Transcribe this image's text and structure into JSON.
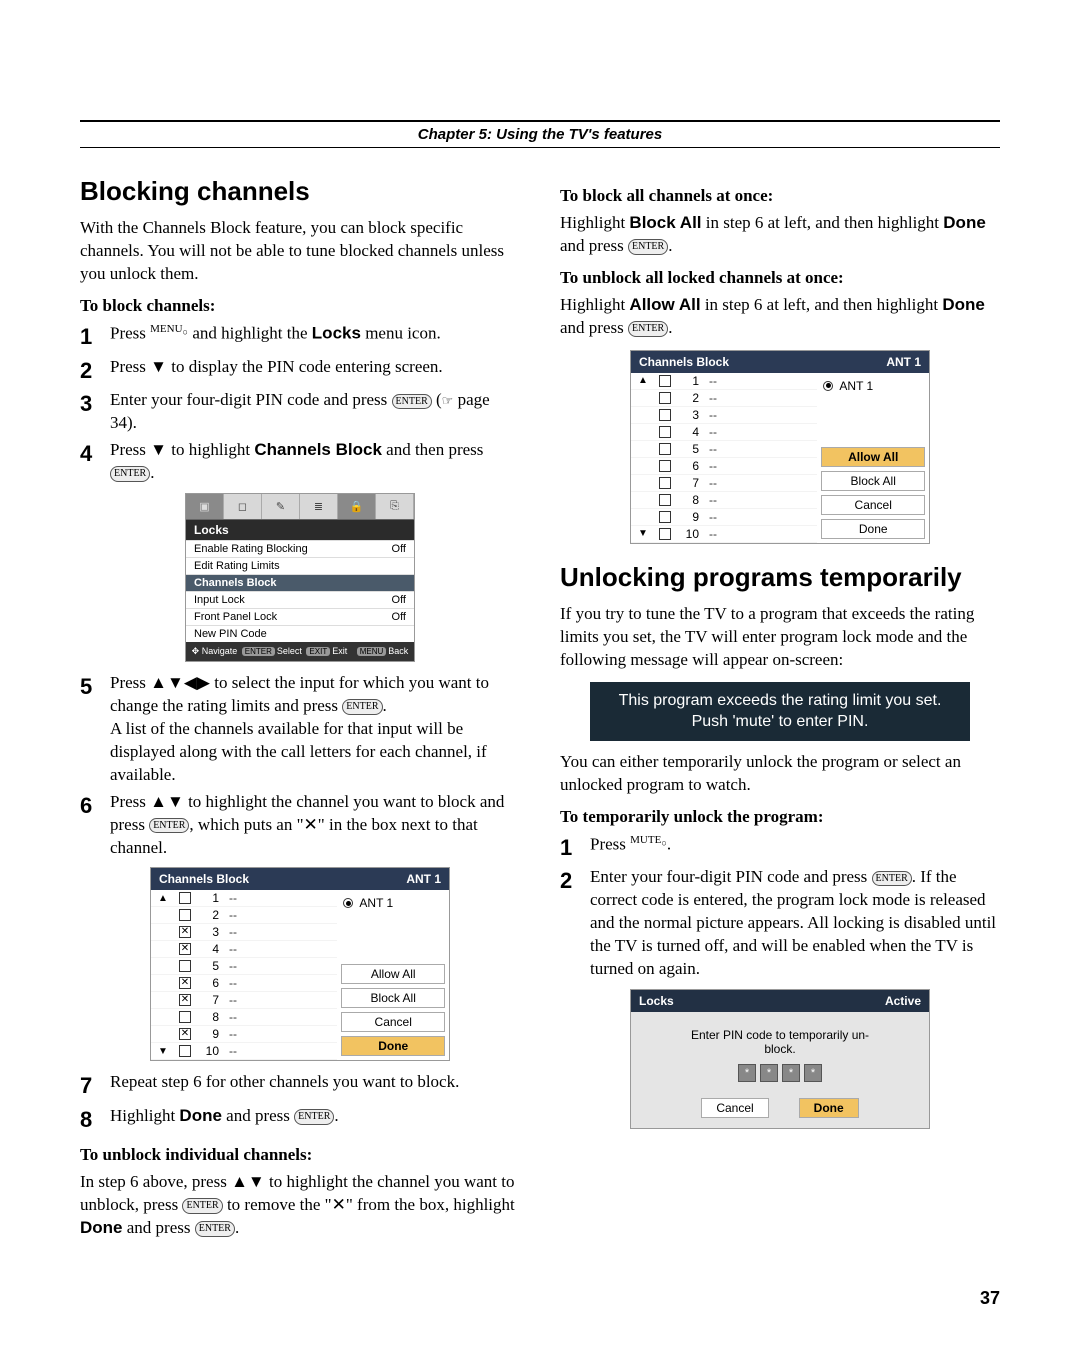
{
  "chapter": "Chapter 5: Using the TV's features",
  "page": "37",
  "left": {
    "h": "Blocking channels",
    "intro": "With the Channels Block feature, you can block specific channels. You will not be able to tune blocked channels unless you unlock them.",
    "sub1": "To block channels:",
    "steps_a": {
      "s1_a": "Press ",
      "s1_b": " and highlight the ",
      "s1_c": "Locks",
      "s1_d": " menu icon.",
      "s2_a": "Press ",
      "s2_b": " to display the PIN code entering screen.",
      "s3_a": "Enter your four-digit PIN code and press ",
      "s3_b": " (",
      "s3_c": " page 34).",
      "s4_a": "Press ",
      "s4_b": " to highlight ",
      "s4_c": "Channels Block",
      "s4_d": " and then press "
    },
    "locks_shot": {
      "title": "Locks",
      "r1l": "Enable Rating Blocking",
      "r1v": "Off",
      "r2l": "Edit Rating Limits",
      "r3l": "Channels Block",
      "r4l": "Input Lock",
      "r4v": "Off",
      "r5l": "Front Panel Lock",
      "r5v": "Off",
      "r6l": "New PIN Code",
      "foot_nav": "Navigate",
      "foot_sel": "Select",
      "foot_exit": "Exit",
      "foot_back": "Back",
      "pill_enter": "ENTER",
      "pill_exit": "EXIT",
      "pill_menu": "MENU"
    },
    "s5_a": "Press ",
    "s5_b": " to select the input for which you want to change the rating limits and press ",
    "s5_c": "A list of the channels available for that input will be displayed along with the call letters for each channel, if available.",
    "s6_a": "Press ",
    "s6_b": " to highlight the channel you want to block and press ",
    "s6_c": ", which puts an \"",
    "s6_d": "\" in the box next to that channel.",
    "cb": {
      "title": "Channels Block",
      "ant": "ANT 1",
      "radio": "ANT 1",
      "allow": "Allow All",
      "block": "Block All",
      "cancel": "Cancel",
      "done": "Done",
      "checks": [
        "",
        "",
        "x",
        "x",
        "",
        "x",
        "x",
        "",
        "x",
        ""
      ],
      "nums": [
        "1",
        "2",
        "3",
        "4",
        "5",
        "6",
        "7",
        "8",
        "9",
        "10"
      ]
    },
    "s7": "Repeat step 6 for other channels you want to block.",
    "s8_a": "Highlight ",
    "s8_b": "Done",
    "s8_c": " and press ",
    "sub2": "To unblock individual channels:",
    "unblock_a": "In step 6 above, press ",
    "unblock_b": " to highlight the channel you want to unblock, press ",
    "unblock_c": " to remove the \"",
    "unblock_d": "\" from the box, highlight ",
    "unblock_e": "Done",
    "unblock_f": " and press "
  },
  "right": {
    "sub1": "To block all channels at once:",
    "p1_a": "Highlight ",
    "p1_b": "Block All",
    "p1_c": " in step 6 at left, and then highlight ",
    "p1_d": "Done",
    "p1_e": " and press ",
    "sub2": "To unblock all locked channels at once:",
    "p2_a": "Highlight ",
    "p2_b": "Allow All",
    "p2_c": " in step 6 at left, and then highlight ",
    "p2_d": "Done",
    "p2_e": " and press ",
    "cb2": {
      "title": "Channels Block",
      "ant": "ANT 1",
      "radio": "ANT 1",
      "allow": "Allow All",
      "block": "Block All",
      "cancel": "Cancel",
      "done": "Done",
      "nums": [
        "1",
        "2",
        "3",
        "4",
        "5",
        "6",
        "7",
        "8",
        "9",
        "10"
      ]
    },
    "h2": "Unlocking programs temporarily",
    "p3": "If you try to tune the TV to a program that exceeds the rating limits you set, the TV will enter program lock mode and the following message will appear on-screen:",
    "banner1": "This program exceeds the rating limit you set.",
    "banner2": "Push 'mute' to enter PIN.",
    "p4": "You can either temporarily unlock the program or select an unlocked program to watch.",
    "sub3": "To temporarily unlock the program:",
    "r_s1_a": "Press ",
    "r_s2_a": "Enter your four-digit PIN code and press ",
    "r_s2_b": ". If the correct code is entered, the program lock mode is released and the normal picture appears. All locking is disabled until the TV is turned off, and will be enabled when the TV is turned on again.",
    "pinshot": {
      "title": "Locks",
      "active": "Active",
      "msg1": "Enter PIN code to temporarily un-",
      "msg2": "block.",
      "cancel": "Cancel",
      "done": "Done"
    }
  },
  "glyphs": {
    "menu": "MENU",
    "mute": "MUTE",
    "enter": "ENTER",
    "down": "▼",
    "up": "▲",
    "left": "◀",
    "right": "▶",
    "x": "✕",
    "hand": "☞",
    "dot": "•"
  }
}
